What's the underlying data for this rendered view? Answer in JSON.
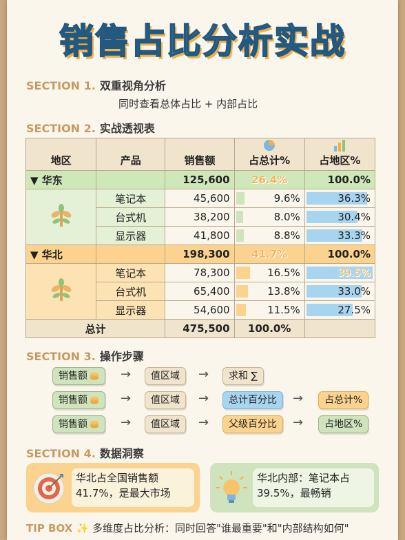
{
  "title": "销售占比分析实战",
  "sections": {
    "s1": {
      "label": "SECTION 1.",
      "title": "双重视角分析",
      "subtitle": "同时查看总体占比 + 内部占比"
    },
    "s2": {
      "label": "SECTION 2.",
      "title": "实战透视表"
    },
    "s3": {
      "label": "SECTION 3.",
      "title": "操作步骤"
    },
    "s4": {
      "label": "SECTION 4.",
      "title": "数据洞察"
    }
  },
  "table": {
    "headers": [
      "地区",
      "产品",
      "销售额",
      "占总计%",
      "占地区%"
    ],
    "groups": [
      {
        "region": "▼ 华东",
        "total": "125,600",
        "pct_total": "26.4%",
        "pct_region": "100.0%",
        "color": "#cfe8b9",
        "rows": [
          {
            "product": "笔记本",
            "sales": "45,600",
            "pct_total": "9.6%",
            "pct_region": "36.3%",
            "share_total": 0.096,
            "share_region": 0.363
          },
          {
            "product": "台式机",
            "sales": "38,200",
            "pct_total": "8.0%",
            "pct_region": "30.4%",
            "share_total": 0.08,
            "share_region": 0.304
          },
          {
            "product": "显示器",
            "sales": "41,800",
            "pct_total": "8.8%",
            "pct_region": "33.3%",
            "share_total": 0.088,
            "share_region": 0.333
          }
        ]
      },
      {
        "region": "▼ 华北",
        "total": "198,300",
        "pct_total": "41.7%",
        "pct_region": "100.0%",
        "color": "#fbd28e",
        "rows": [
          {
            "product": "笔记本",
            "sales": "78,300",
            "pct_total": "16.5%",
            "pct_region": "39.5%",
            "share_total": 0.165,
            "share_region": 0.395
          },
          {
            "product": "台式机",
            "sales": "65,400",
            "pct_total": "13.8%",
            "pct_region": "33.0%",
            "share_total": 0.138,
            "share_region": 0.33
          },
          {
            "product": "显示器",
            "sales": "54,600",
            "pct_total": "11.5%",
            "pct_region": "27.5%",
            "share_total": 0.115,
            "share_region": 0.275
          }
        ]
      }
    ],
    "grand": {
      "label": "总计",
      "sales": "475,500",
      "pct_total": "100.0%"
    }
  },
  "steps": [
    {
      "field": "销售额",
      "area": "值区域",
      "op": "求和 ∑",
      "result": ""
    },
    {
      "field": "销售额",
      "area": "值区域",
      "op": "总计百分比",
      "result": "占总计%"
    },
    {
      "field": "销售额",
      "area": "值区域",
      "op": "父级百分比",
      "result": "占地区%"
    }
  ],
  "insights": {
    "left": {
      "line1": "华北占全国销售额",
      "line2": "41.7%，是最大市场"
    },
    "right": {
      "line1": "华北内部：笔记本占",
      "line2": "39.5%，最畅销"
    }
  },
  "tip": {
    "label": "TIP BOX ✨",
    "text": "多维度占比分析：同时回答\"谁最重要\"和\"内部结构如何\""
  },
  "colors": {
    "green_bar": "#cfe3bd",
    "blue_bar": "#a7d5f0",
    "orange_bar": "#fbd28e",
    "accent": "#c79a63",
    "title_blue": "#3f8fc4"
  }
}
